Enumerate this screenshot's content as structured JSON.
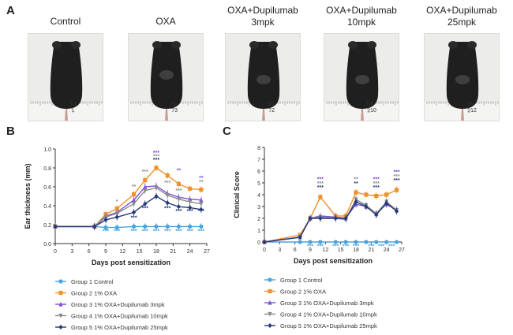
{
  "panels": {
    "a": "A",
    "b": "B",
    "c": "C"
  },
  "photos": [
    {
      "title": "Control",
      "tag": "61\n1"
    },
    {
      "title": "OXA",
      "tag": "62\n73"
    },
    {
      "title": "OXA+Dupilumab\n3mpk",
      "tag": "63\n72"
    },
    {
      "title": "OXA+Dupilumab\n10mpk",
      "tag": "64\n210"
    },
    {
      "title": "OXA+Dupilumab\n25mpk",
      "tag": "65\n212"
    }
  ],
  "colors": {
    "group1": "#4aa3df",
    "group2": "#f0922b",
    "group3": "#7b4fd6",
    "group4": "#8c8c8c",
    "group5": "#253a78",
    "axis": "#333333"
  },
  "chart_data": [
    {
      "type": "line",
      "panel": "B",
      "xlabel": "Days post sensitization",
      "ylabel": "Ear thickness (mm)",
      "xlim": [
        0,
        27
      ],
      "ylim": [
        0.0,
        1.0
      ],
      "xticks": [
        0,
        3,
        6,
        9,
        12,
        15,
        18,
        21,
        24,
        27
      ],
      "yticks": [
        "0.0",
        "0.2",
        "0.4",
        "0.6",
        "0.8",
        "1.0"
      ],
      "x": [
        0,
        7,
        9,
        11,
        14,
        16,
        18,
        20,
        22,
        24,
        26
      ],
      "series": [
        {
          "name": "Group 1 Control",
          "marker": "circle",
          "color_key": "group1",
          "values": [
            0.18,
            0.18,
            0.17,
            0.17,
            0.18,
            0.18,
            0.18,
            0.18,
            0.18,
            0.18,
            0.18
          ]
        },
        {
          "name": "Group 2 1% OXA",
          "marker": "square",
          "color_key": "group2",
          "values": [
            0.18,
            0.18,
            0.31,
            0.37,
            0.52,
            0.67,
            0.8,
            0.72,
            0.63,
            0.58,
            0.57
          ]
        },
        {
          "name": "Group 3 1% OXA+Dupilumab 3mpk",
          "marker": "triangle",
          "color_key": "group3",
          "values": [
            0.18,
            0.18,
            0.29,
            0.33,
            0.46,
            0.6,
            0.61,
            0.53,
            0.49,
            0.47,
            0.46
          ]
        },
        {
          "name": "Group 4 1% OXA+Dupilumab 10mpk",
          "marker": "triangle-down",
          "color_key": "group4",
          "values": [
            0.18,
            0.18,
            0.28,
            0.32,
            0.42,
            0.56,
            0.59,
            0.51,
            0.47,
            0.44,
            0.42
          ]
        },
        {
          "name": "Group 5 1% OXA+Dupilumab 25mpk",
          "marker": "diamond",
          "color_key": "group5",
          "values": [
            0.18,
            0.18,
            0.25,
            0.28,
            0.33,
            0.42,
            0.5,
            0.43,
            0.39,
            0.38,
            0.36
          ]
        }
      ],
      "significance": [
        {
          "text": "***",
          "x": 18,
          "y": 0.96,
          "color_key": "group3"
        },
        {
          "text": "***",
          "x": 18,
          "y": 0.92,
          "color_key": "group4"
        },
        {
          "text": "***",
          "x": 18,
          "y": 0.885,
          "color_key": "group5"
        },
        {
          "text": "**",
          "x": 22,
          "y": 0.77,
          "color_key": "group3"
        },
        {
          "text": "**",
          "x": 26,
          "y": 0.69,
          "color_key": "group3"
        },
        {
          "text": "**",
          "x": 26,
          "y": 0.65,
          "color_key": "group4"
        },
        {
          "text": "***",
          "x": 16,
          "y": 0.76,
          "color_key": "group4"
        },
        {
          "text": "**",
          "x": 14,
          "y": 0.6,
          "color_key": "group4"
        },
        {
          "text": "*",
          "x": 11,
          "y": 0.44,
          "color_key": "group4"
        },
        {
          "text": "***",
          "x": 20,
          "y": 0.64,
          "color_key": "group4"
        },
        {
          "text": "***",
          "x": 22,
          "y": 0.56,
          "color_key": "group4"
        },
        {
          "text": "***",
          "x": 16,
          "y": 0.37,
          "color_key": "group5"
        },
        {
          "text": "***",
          "x": 20,
          "y": 0.37,
          "color_key": "group5"
        },
        {
          "text": "***",
          "x": 22,
          "y": 0.34,
          "color_key": "group5"
        },
        {
          "text": "***",
          "x": 24,
          "y": 0.34,
          "color_key": "group5"
        },
        {
          "text": "***",
          "x": 26,
          "y": 0.34,
          "color_key": "group5"
        },
        {
          "text": "***",
          "x": 14,
          "y": 0.27,
          "color_key": "group5"
        },
        {
          "text": "***",
          "x": 11,
          "y": 0.13,
          "color_key": "group1"
        },
        {
          "text": "***",
          "x": 9,
          "y": 0.13,
          "color_key": "group1"
        },
        {
          "text": "***",
          "x": 14,
          "y": 0.13,
          "color_key": "group1"
        },
        {
          "text": "***",
          "x": 16,
          "y": 0.13,
          "color_key": "group1"
        },
        {
          "text": "***",
          "x": 18,
          "y": 0.13,
          "color_key": "group1"
        },
        {
          "text": "***",
          "x": 20,
          "y": 0.13,
          "color_key": "group1"
        },
        {
          "text": "***",
          "x": 22,
          "y": 0.13,
          "color_key": "group1"
        },
        {
          "text": "***",
          "x": 24,
          "y": 0.13,
          "color_key": "group1"
        },
        {
          "text": "***",
          "x": 26,
          "y": 0.13,
          "color_key": "group1"
        }
      ],
      "legend": "below"
    },
    {
      "type": "line",
      "panel": "C",
      "xlabel": "Days post sensitization",
      "ylabel": "Clinical Score",
      "xlim": [
        0,
        27
      ],
      "ylim": [
        0,
        8
      ],
      "xticks": [
        0,
        3,
        6,
        9,
        12,
        15,
        18,
        21,
        24,
        27
      ],
      "yticks": [
        "0",
        "1",
        "2",
        "3",
        "4",
        "5",
        "6",
        "7",
        "8"
      ],
      "x": [
        0,
        7,
        9,
        11,
        14,
        16,
        18,
        20,
        22,
        24,
        26
      ],
      "series": [
        {
          "name": "Group 1 Control",
          "marker": "circle",
          "color_key": "group1",
          "values": [
            0,
            0,
            0,
            0,
            0,
            0,
            0,
            0,
            0,
            0,
            0
          ]
        },
        {
          "name": "Group 2 1% OXA",
          "marker": "square",
          "color_key": "group2",
          "values": [
            0,
            0.6,
            2.0,
            3.8,
            2.2,
            2.2,
            4.2,
            4.0,
            3.9,
            4.0,
            4.4
          ]
        },
        {
          "name": "Group 3 1% OXA+Dupilumab 3mpk",
          "marker": "triangle",
          "color_key": "group3",
          "values": [
            0,
            0.4,
            2.0,
            2.2,
            2.1,
            2.0,
            3.2,
            3.0,
            2.4,
            3.2,
            2.7
          ]
        },
        {
          "name": "Group 4 1% OXA+Dupilumab 10mpk",
          "marker": "triangle-down",
          "color_key": "group4",
          "values": [
            0,
            0.4,
            2.0,
            2.1,
            2.0,
            1.9,
            3.6,
            3.1,
            2.4,
            3.4,
            2.7
          ]
        },
        {
          "name": "Group 5 1% OXA+Dupilumab 25mpk",
          "marker": "diamond",
          "color_key": "group5",
          "values": [
            0,
            0.4,
            2.0,
            2.0,
            2.0,
            2.0,
            3.4,
            3.0,
            2.3,
            3.3,
            2.6
          ]
        }
      ],
      "significance": [
        {
          "text": "***",
          "x": 11,
          "y": 5.3,
          "color_key": "group3"
        },
        {
          "text": "***",
          "x": 11,
          "y": 4.95,
          "color_key": "group4"
        },
        {
          "text": "***",
          "x": 11,
          "y": 4.6,
          "color_key": "group5"
        },
        {
          "text": "**",
          "x": 18,
          "y": 5.3,
          "color_key": "group4"
        },
        {
          "text": "**",
          "x": 18,
          "y": 4.95,
          "color_key": "group5"
        },
        {
          "text": "***",
          "x": 22,
          "y": 5.3,
          "color_key": "group3"
        },
        {
          "text": "***",
          "x": 22,
          "y": 4.95,
          "color_key": "group4"
        },
        {
          "text": "***",
          "x": 22,
          "y": 4.6,
          "color_key": "group5"
        },
        {
          "text": "***",
          "x": 26,
          "y": 5.9,
          "color_key": "group3"
        },
        {
          "text": "***",
          "x": 26,
          "y": 5.55,
          "color_key": "group4"
        },
        {
          "text": "***",
          "x": 26,
          "y": 5.2,
          "color_key": "group5"
        },
        {
          "text": "***",
          "x": 9,
          "y": -0.35,
          "color_key": "group1"
        },
        {
          "text": "***",
          "x": 11,
          "y": -0.35,
          "color_key": "group1"
        },
        {
          "text": "***",
          "x": 14,
          "y": -0.35,
          "color_key": "group1"
        },
        {
          "text": "***",
          "x": 16,
          "y": -0.35,
          "color_key": "group1"
        },
        {
          "text": "***",
          "x": 18,
          "y": -0.35,
          "color_key": "group1"
        },
        {
          "text": "***",
          "x": 21,
          "y": -0.35,
          "color_key": "group1"
        },
        {
          "text": "***",
          "x": 23,
          "y": -0.35,
          "color_key": "group1"
        },
        {
          "text": "***",
          "x": 25,
          "y": -0.35,
          "color_key": "group1"
        }
      ],
      "legend": "below"
    }
  ]
}
